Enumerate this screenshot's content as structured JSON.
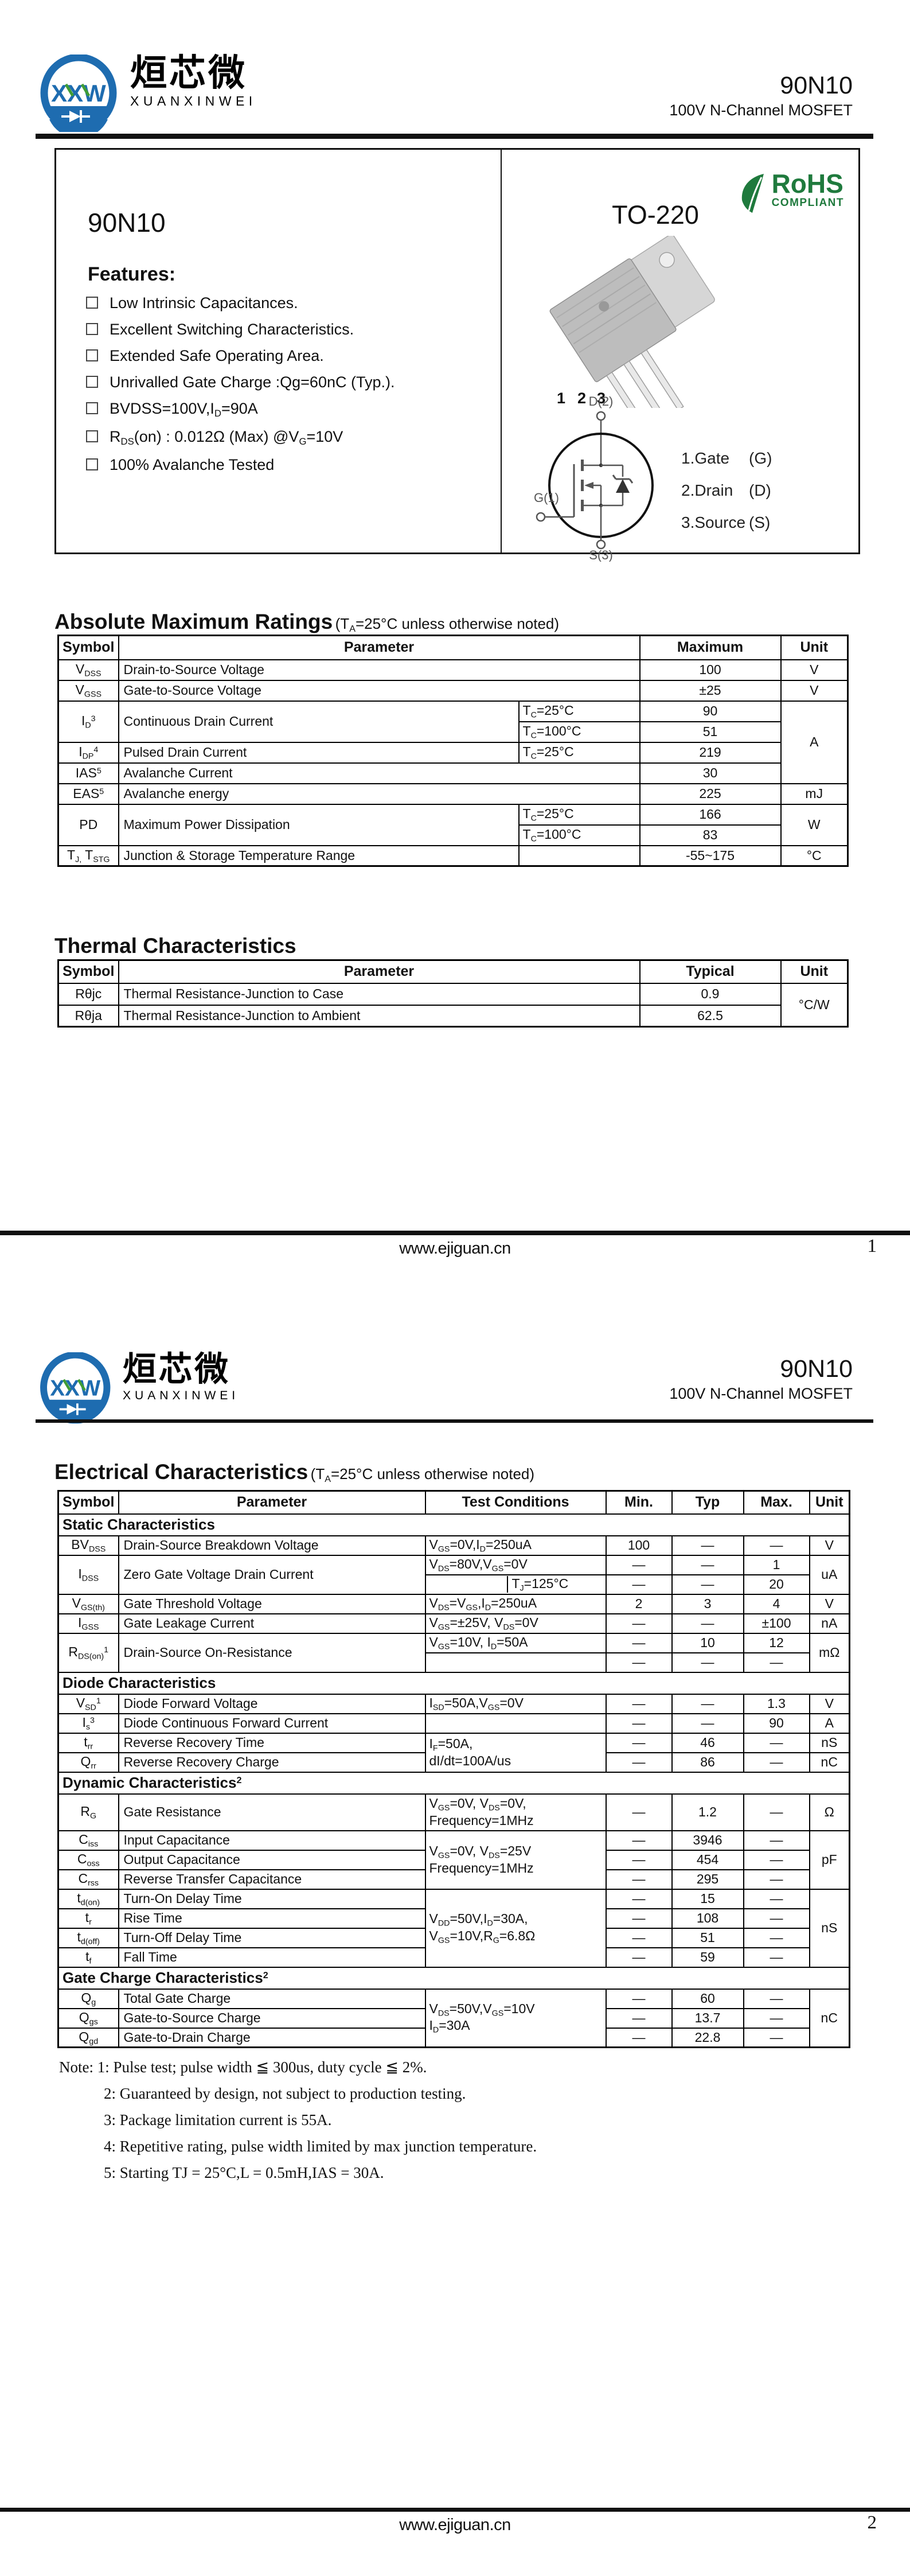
{
  "doc": {
    "part": "90N10",
    "subtitle": "100V N-Channel MOSFET",
    "website": "www.ejiguan.cn",
    "page1_number": "1",
    "page2_number": "2"
  },
  "logo": {
    "monogram": "XXW",
    "cn": "烜芯微",
    "en": "XUANXINWEI"
  },
  "colors": {
    "logo_blue": "#1e6cb0",
    "logo_green": "#3f9c35",
    "rohs_green": "#1f7a3d"
  },
  "intro": {
    "part": "90N10",
    "package": "TO-220",
    "rohs_line1": "RoHS",
    "rohs_line2": "COMPLIANT",
    "features_title": "Features:",
    "features": [
      "Low Intrinsic Capacitances.",
      "Excellent Switching Characteristics.",
      "Extended Safe Operating Area.",
      "Unrivalled Gate Charge :Qg=60nC (Typ.).",
      "BVDSS=100V,I_{D}=90A",
      "R_{DS}(on) : 0.012Ω (Max) @V_{G}=10V",
      "100% Avalanche Tested"
    ],
    "pins": [
      "1",
      "2",
      "3"
    ],
    "sym_drain": "D(2)",
    "sym_gate": "G(1)",
    "sym_source": "S(3)",
    "pin_legend": [
      {
        "label": "1.Gate",
        "sig": "(G)"
      },
      {
        "label": "2.Drain",
        "sig": "(D)"
      },
      {
        "label": "3.Source",
        "sig": "(S)"
      }
    ]
  },
  "abs_max": {
    "title": "Absolute Maximum Ratings",
    "title_note": "(T_{A}=25°C unless otherwise noted)",
    "headers": {
      "symbol": "Symbol",
      "parameter": "Parameter",
      "maximum": "Maximum",
      "unit": "Unit"
    },
    "rows": {
      "vdss": {
        "sym": "V_{DSS}",
        "param": "Drain-to-Source Voltage",
        "max": "100",
        "unit": "V"
      },
      "vgss": {
        "sym": "V_{GSS}",
        "param": "Gate-to-Source Voltage",
        "max": "±25",
        "unit": "V"
      },
      "id": {
        "sym": "I_{D}^{3}",
        "param": "Continuous Drain Current",
        "cond1": "T_{C}=25°C",
        "max1": "90",
        "cond2": "T_{C}=100°C",
        "max2": "51",
        "unit": "A"
      },
      "idp": {
        "sym": "I_{DP}^{4}",
        "param": "Pulsed Drain Current",
        "cond": "T_{C}=25°C",
        "max": "219"
      },
      "ias": {
        "sym": "IAS^{5}",
        "param": "Avalanche Current",
        "max": "30"
      },
      "eas": {
        "sym": "EAS^{5}",
        "param": "Avalanche energy",
        "max": "225",
        "unit": "mJ"
      },
      "pd": {
        "sym": "PD",
        "param": "Maximum Power Dissipation",
        "cond1": "T_{C}=25°C",
        "max1": "166",
        "cond2": "T_{C}=100°C",
        "max2": "83",
        "unit": "W"
      },
      "tj": {
        "sym": "T_{J,} T_{STG}",
        "param": "Junction & Storage Temperature Range",
        "cond": "",
        "max": "-55~175",
        "unit": "°C"
      }
    }
  },
  "thermal": {
    "title": "Thermal Characteristics",
    "headers": {
      "symbol": "Symbol",
      "parameter": "Parameter",
      "typical": "Typical",
      "unit": "Unit"
    },
    "unit": "°C/W",
    "rows": {
      "rjc": {
        "sym": "Rθjc",
        "param": "Thermal Resistance-Junction to Case",
        "typ": "0.9"
      },
      "rja": {
        "sym": "Rθja",
        "param": "Thermal Resistance-Junction to Ambient",
        "typ": "62.5"
      }
    }
  },
  "elec": {
    "title": "Electrical Characteristics",
    "title_note": "(T_{A}=25°C unless otherwise noted)",
    "headers": {
      "symbol": "Symbol",
      "parameter": "Parameter",
      "cond": "Test Conditions",
      "min": "Min.",
      "typ": "Typ",
      "max": "Max.",
      "unit": "Unit"
    },
    "sections": {
      "static": "Static Characteristics",
      "diode": "Diode Characteristics",
      "dynamic": "Dynamic Characteristics^{2}",
      "gate": "Gate Charge Characteristics^{2}"
    },
    "rows": {
      "bvdss": {
        "sym": "BV_{DSS}",
        "param": "Drain-Source Breakdown Voltage",
        "cond": "V_{GS}=0V,I_{D}=250uA",
        "min": "100",
        "typ": "—",
        "max": "—",
        "unit": "V"
      },
      "idss": {
        "sym": "I_{DSS}",
        "param": "Zero Gate Voltage Drain Current",
        "cond1": "V_{DS}=80V,V_{GS}=0V",
        "min1": "—",
        "typ1": "—",
        "max1": "1",
        "cond2": "T_{J}=125°C",
        "min2": "—",
        "typ2": "—",
        "max2": "20",
        "unit": "uA"
      },
      "vgsth": {
        "sym": "V_{GS(th)}",
        "param": "Gate Threshold Voltage",
        "cond": "V_{DS}=V_{GS},I_{D}=250uA",
        "min": "2",
        "typ": "3",
        "max": "4",
        "unit": "V"
      },
      "igss": {
        "sym": "I_{GSS}",
        "param": "Gate Leakage Current",
        "cond": "V_{GS}=±25V, V_{DS}=0V",
        "min": "—",
        "typ": "—",
        "max": "±100",
        "unit": "nA"
      },
      "rdson": {
        "sym": "R_{DS(on)}^{1}",
        "param": "Drain-Source On-Resistance",
        "cond1": "V_{GS}=10V, I_{D}=50A",
        "min1": "—",
        "typ1": "10",
        "max1": "12",
        "cond2": "",
        "min2": "—",
        "typ2": "—",
        "max2": "—",
        "unit": "mΩ"
      },
      "vsd": {
        "sym": "V_{SD}^{1}",
        "param": "Diode Forward Voltage",
        "cond": "I_{SD}=50A,V_{GS}=0V",
        "min": "—",
        "typ": "—",
        "max": "1.3",
        "unit": "V"
      },
      "is": {
        "sym": "I_{s}^{3}",
        "param": "Diode Continuous Forward Current",
        "cond": "",
        "min": "—",
        "typ": "—",
        "max": "90",
        "unit": "A"
      },
      "trr": {
        "sym": "t_{rr}",
        "param": "Reverse Recovery Time",
        "cond": "I_{F}=50A,\ndI/dt=100A/us",
        "min": "—",
        "typ": "46",
        "max": "—",
        "unit": "nS"
      },
      "qrr": {
        "sym": "Q_{rr}",
        "param": "Reverse Recovery Charge",
        "min": "—",
        "typ": "86",
        "max": "—",
        "unit": "nC"
      },
      "rg": {
        "sym": "R_{G}",
        "param": "Gate Resistance",
        "cond": "V_{GS}=0V, V_{DS}=0V,\nFrequency=1MHz",
        "min": "—",
        "typ": "1.2",
        "max": "—",
        "unit": "Ω"
      },
      "ciss": {
        "sym": "C_{iss}",
        "param": "Input Capacitance",
        "cond": "V_{GS}=0V, V_{DS}=25V\nFrequency=1MHz",
        "min": "—",
        "typ": "3946",
        "max": "—",
        "unit": "pF"
      },
      "coss": {
        "sym": "C_{oss}",
        "param": "Output Capacitance",
        "min": "—",
        "typ": "454",
        "max": "—"
      },
      "crss": {
        "sym": "C_{rss}",
        "param": "Reverse Transfer Capacitance",
        "min": "—",
        "typ": "295",
        "max": "—"
      },
      "tdon": {
        "sym": "t_{d(on)}",
        "param": "Turn-On Delay Time",
        "cond": "V_{DD}=50V,I_{D}=30A,\nV_{GS}=10V,R_{G}=6.8Ω",
        "min": "—",
        "typ": "15",
        "max": "—",
        "unit": "nS"
      },
      "tr": {
        "sym": "t_{r}",
        "param": "Rise Time",
        "min": "—",
        "typ": "108",
        "max": "—"
      },
      "tdoff": {
        "sym": "t_{d(off)}",
        "param": "Turn-Off Delay Time",
        "min": "—",
        "typ": "51",
        "max": "—"
      },
      "tf": {
        "sym": "t_{f}",
        "param": "Fall Time",
        "min": "—",
        "typ": "59",
        "max": "—"
      },
      "qg": {
        "sym": "Q_{g}",
        "param": "Total Gate Charge",
        "cond": "V_{DS}=50V,V_{GS}=10V\nI_{D}=30A",
        "min": "—",
        "typ": "60",
        "max": "—",
        "unit": "nC"
      },
      "qgs": {
        "sym": "Q_{gs}",
        "param": "Gate-to-Source Charge",
        "min": "—",
        "typ": "13.7",
        "max": "—"
      },
      "qgd": {
        "sym": "Q_{gd}",
        "param": "Gate-to-Drain Charge",
        "min": "—",
        "typ": "22.8",
        "max": "—"
      }
    }
  },
  "notes": {
    "line1": "Note: 1: Pulse test; pulse width ≦ 300us, duty cycle ≦ 2%.",
    "line2": "2: Guaranteed by design, not subject to production testing.",
    "line3": "3: Package limitation current is 55A.",
    "line4": "4: Repetitive rating, pulse width limited by max junction temperature.",
    "line5": "5: Starting TJ = 25°C,L = 0.5mH,IAS = 30A."
  }
}
